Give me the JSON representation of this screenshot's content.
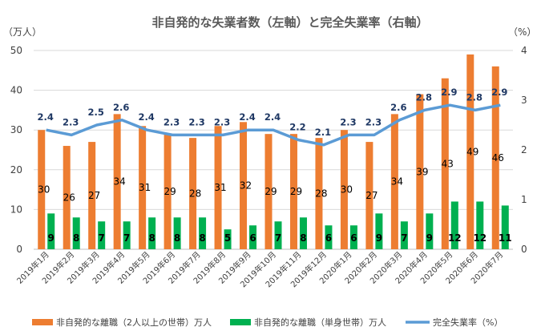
{
  "chart_data": {
    "type": "bar",
    "title": "非自発的な失業者数（左軸）と完全失業率（右軸）",
    "y_left_unit": "（万人）",
    "y_right_unit": "（%）",
    "ylim_left": [
      0,
      50
    ],
    "ylim_right": [
      0,
      4
    ],
    "y_left_ticks": [
      "0",
      "10",
      "20",
      "30",
      "40",
      "50"
    ],
    "y_right_ticks": [
      "0",
      "1",
      "2",
      "3",
      "4"
    ],
    "grid": true,
    "legend_position": "bottom",
    "categories": [
      "2019年1月",
      "2019年2月",
      "2019年3月",
      "2019年4月",
      "2019年5月",
      "2019年6月",
      "2019年7月",
      "2019年8月",
      "2019年9月",
      "2019年10月",
      "2019年11月",
      "2019年12月",
      "2020年1月",
      "2020年2月",
      "2020年3月",
      "2020年4月",
      "2020年5月",
      "2020年6月",
      "2020年7月"
    ],
    "series": [
      {
        "name": "非自発的な離職（2人以上の世帯）万人",
        "kind": "bar",
        "axis": "left",
        "color": "#ed7d31",
        "values": [
          30,
          26,
          27,
          34,
          31,
          29,
          28,
          31,
          32,
          29,
          29,
          28,
          30,
          27,
          34,
          39,
          43,
          49,
          46
        ],
        "labels": [
          "30",
          "26",
          "27",
          "34",
          "31",
          "29",
          "28",
          "31",
          "32",
          "29",
          "29",
          "28",
          "30",
          "27",
          "34",
          "39",
          "43",
          "49",
          "46"
        ]
      },
      {
        "name": "非自発的な離職（単身世帯）万人",
        "kind": "bar",
        "axis": "left",
        "color": "#00b050",
        "values": [
          9,
          8,
          7,
          7,
          8,
          8,
          8,
          5,
          6,
          7,
          8,
          6,
          6,
          9,
          7,
          9,
          12,
          12,
          11
        ],
        "labels": [
          "9",
          "8",
          "7",
          "7",
          "8",
          "8",
          "8",
          "5",
          "6",
          "7",
          "8",
          "6",
          "6",
          "9",
          "7",
          "9",
          "12",
          "12",
          "11"
        ]
      },
      {
        "name": "完全失業率（%）",
        "kind": "line",
        "axis": "right",
        "color": "#5b9bd5",
        "values": [
          2.4,
          2.3,
          2.5,
          2.6,
          2.4,
          2.3,
          2.3,
          2.3,
          2.4,
          2.4,
          2.2,
          2.1,
          2.3,
          2.3,
          2.6,
          2.8,
          2.9,
          2.8,
          2.9
        ],
        "labels": [
          "2.4",
          "2.3",
          "2.5",
          "2.6",
          "2.4",
          "2.3",
          "2.3",
          "2.3",
          "2.4",
          "2.4",
          "2.2",
          "2.1",
          "2.3",
          "2.3",
          "2.6",
          "2.8",
          "2.9",
          "2.8",
          "2.9"
        ]
      }
    ]
  }
}
